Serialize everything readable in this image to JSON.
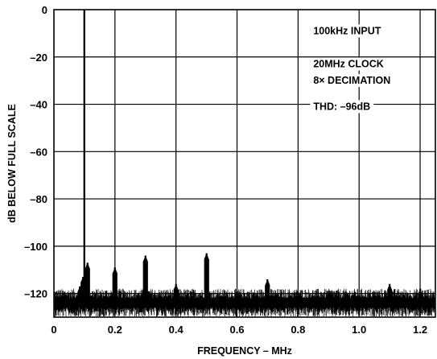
{
  "chart_data": {
    "type": "line",
    "title": "",
    "xlabel": "FREQUENCY – MHz",
    "ylabel": "dB BELOW FULL SCALE",
    "xlim": [
      0,
      1.25
    ],
    "ylim": [
      -130,
      0
    ],
    "x_ticks": [
      {
        "value": 0,
        "label": "0"
      },
      {
        "value": 0.2,
        "label": "0.2"
      },
      {
        "value": 0.4,
        "label": "0.4"
      },
      {
        "value": 0.6,
        "label": "0.6"
      },
      {
        "value": 0.8,
        "label": "0.8"
      },
      {
        "value": 1.0,
        "label": "1.0"
      },
      {
        "value": 1.2,
        "label": "1.2"
      }
    ],
    "y_ticks": [
      {
        "value": 0,
        "label": "0"
      },
      {
        "value": -20,
        "label": "–20"
      },
      {
        "value": -40,
        "label": "–40"
      },
      {
        "value": -60,
        "label": "–60"
      },
      {
        "value": -80,
        "label": "–80"
      },
      {
        "value": -100,
        "label": "–100"
      },
      {
        "value": -120,
        "label": "–120"
      }
    ],
    "grid": true,
    "noise_floor_db": -124,
    "series": [
      {
        "points": [
          {
            "x": 0.1,
            "y": 0
          },
          {
            "x": 0.085,
            "y": -117
          },
          {
            "x": 0.09,
            "y": -116
          },
          {
            "x": 0.095,
            "y": -113
          },
          {
            "x": 0.11,
            "y": -107
          },
          {
            "x": 0.2,
            "y": -109
          },
          {
            "x": 0.3,
            "y": -104
          },
          {
            "x": 0.4,
            "y": -116
          },
          {
            "x": 0.5,
            "y": -103
          },
          {
            "x": 0.6,
            "y": -119
          },
          {
            "x": 0.7,
            "y": -114
          },
          {
            "x": 0.9,
            "y": -119
          },
          {
            "x": 1.1,
            "y": -116
          },
          {
            "x": 1.2,
            "y": -118
          }
        ]
      }
    ],
    "annotations": [
      {
        "text": "100kHz INPUT",
        "x": 0.85,
        "y": -9
      },
      {
        "text": "20MHz CLOCK",
        "x": 0.85,
        "y": -23
      },
      {
        "text": "8× DECIMATION",
        "x": 0.85,
        "y": -30
      },
      {
        "text": "THD: –96dB",
        "x": 0.85,
        "y": -41
      }
    ]
  }
}
